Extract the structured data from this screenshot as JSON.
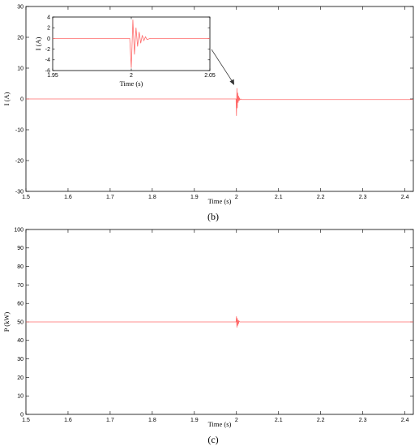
{
  "chart_data": [
    {
      "id": "b",
      "type": "line",
      "panel_label": "(b)",
      "xlabel": "Time (s)",
      "ylabel": "I (A)",
      "xlim": [
        1.5,
        2.42
      ],
      "ylim": [
        -30,
        30
      ],
      "xticks": [
        1.5,
        1.6,
        1.7,
        1.8,
        1.9,
        2,
        2.1,
        2.2,
        2.3,
        2.4
      ],
      "xtick_labels": [
        "1.5",
        "1.6",
        "1.7",
        "1.8",
        "1.9",
        "2",
        "2.1",
        "2.2",
        "2.3",
        "2.4"
      ],
      "yticks": [
        -30,
        -20,
        -10,
        0,
        10,
        20,
        30
      ],
      "ytick_labels": [
        "-30",
        "-20",
        "-10",
        "0",
        "10",
        "20",
        "30"
      ],
      "color": "#ff6b6b",
      "series": [
        {
          "x": [
            1.5,
            1.999,
            2.0,
            2.001,
            2.002,
            2.003,
            2.004,
            2.005,
            2.006,
            2.007,
            2.008,
            2.01,
            2.012,
            2.42
          ],
          "y": [
            0,
            0,
            -5.5,
            3.5,
            -3,
            2,
            -1.2,
            1,
            -0.6,
            0.4,
            -0.3,
            0,
            -0.2,
            -0.2
          ]
        }
      ],
      "inset": {
        "xlabel": "Time (s)",
        "ylabel": "I (A)",
        "xlim": [
          1.95,
          2.05
        ],
        "ylim": [
          -6,
          4
        ],
        "xticks": [
          1.95,
          2,
          2.05
        ],
        "xtick_labels": [
          "1.95",
          "2",
          "2.05"
        ],
        "yticks": [
          -6,
          -4,
          -2,
          0,
          2,
          4
        ],
        "ytick_labels": [
          "-6",
          "-4",
          "-2",
          "0",
          "2",
          "4"
        ],
        "series": [
          {
            "x": [
              1.95,
              1.999,
              2.0,
              2.001,
              2.002,
              2.003,
              2.004,
              2.005,
              2.006,
              2.007,
              2.008,
              2.009,
              2.01,
              2.012,
              2.05
            ],
            "y": [
              0,
              0,
              -5.5,
              3.5,
              -3,
              2,
              -1.5,
              1.2,
              -0.9,
              0.6,
              -0.4,
              0.3,
              -0.2,
              0,
              0
            ]
          }
        ]
      }
    },
    {
      "id": "c",
      "type": "line",
      "panel_label": "(c)",
      "xlabel": "Time (s)",
      "ylabel": "P (kW)",
      "xlim": [
        1.5,
        2.42
      ],
      "ylim": [
        0,
        100
      ],
      "xticks": [
        1.5,
        1.6,
        1.7,
        1.8,
        1.9,
        2,
        2.1,
        2.2,
        2.3,
        2.4
      ],
      "xtick_labels": [
        "1.5",
        "1.6",
        "1.7",
        "1.8",
        "1.9",
        "2",
        "2.1",
        "2.2",
        "2.3",
        "2.4"
      ],
      "yticks": [
        0,
        10,
        20,
        30,
        40,
        50,
        60,
        70,
        80,
        90,
        100
      ],
      "ytick_labels": [
        "0",
        "10",
        "20",
        "30",
        "40",
        "50",
        "60",
        "70",
        "80",
        "90",
        "100"
      ],
      "color": "#ff6b6b",
      "series": [
        {
          "x": [
            1.5,
            1.999,
            2.0,
            2.001,
            2.002,
            2.003,
            2.004,
            2.005,
            2.006,
            2.008,
            2.42
          ],
          "y": [
            50,
            50,
            53,
            47,
            52,
            48,
            51,
            49,
            50.5,
            50,
            50
          ]
        }
      ]
    }
  ]
}
